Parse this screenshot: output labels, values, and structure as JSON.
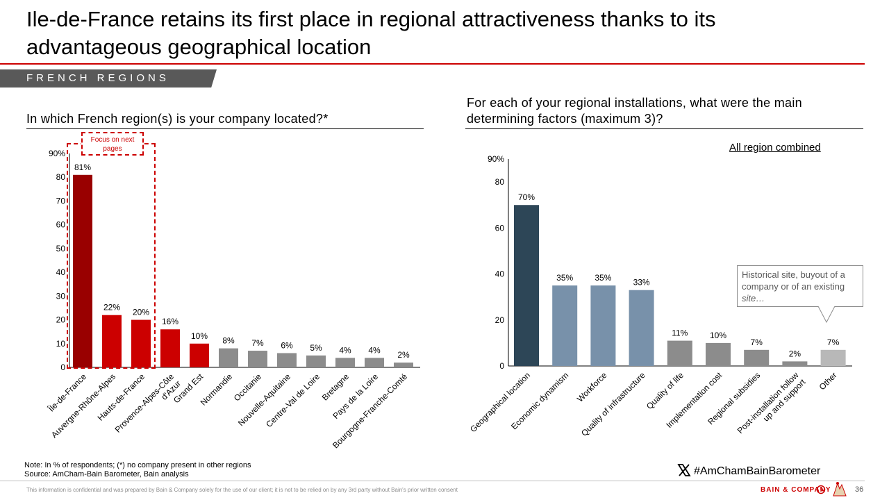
{
  "title": "Ile-de-France retains its first place in regional attractiveness thanks to its advantageous geographical location",
  "section_tag": "FRENCH REGIONS",
  "left_panel": {
    "question": "In which French region(s) is your company located?*",
    "focus_label": "Focus on next pages"
  },
  "right_panel": {
    "question": "For each of your regional installations, what were the main determining factors (maximum 3)?",
    "subtitle": "All region combined",
    "callout": {
      "text": "Historical site, buyout of a company or of an existing ",
      "italic": "site…"
    }
  },
  "note": "Note: In % of respondents; (*) no company present in other regions",
  "source": "Source: AmCham-Bain Barometer, Bain analysis",
  "hashtag": "#AmChamBainBarometer",
  "footer": {
    "disclaimer": "This information is confidential and was prepared by Bain & Company solely for the use of our client; it is not to be relied on by any 3rd party without Bain's prior written consent",
    "brand": "BAIN & COMPANY",
    "page": "36"
  },
  "colors": {
    "accent_red": "#cc0000",
    "dark_red": "#990000",
    "grey": "#8c8c8c",
    "navy": "#2d4657",
    "steel_blue": "#7891aa",
    "light_grey": "#b8b8b8"
  },
  "icons": [
    "x-logo-icon",
    "bain-mark-icon",
    "bain-figure-icon"
  ],
  "chart_data": [
    {
      "type": "bar",
      "categories": [
        "Île-de-France",
        "Auvergne-Rhône-Alpes",
        "Hauts-de-France",
        "Provence-Alpes-Côte d'Azur",
        "Grand Est",
        "Normandie",
        "Occitanie",
        "Nouvelle-Aquitaine",
        "Centre-Val de Loire",
        "Bretagne",
        "Pays de la Loire",
        "Bourgogne-Franche-Comté"
      ],
      "values": [
        81,
        22,
        20,
        16,
        10,
        8,
        7,
        6,
        5,
        4,
        4,
        2
      ],
      "labels": [
        "81%",
        "22%",
        "20%",
        "16%",
        "10%",
        "8%",
        "7%",
        "6%",
        "5%",
        "4%",
        "4%",
        "2%"
      ],
      "bar_colors": [
        "#990000",
        "#cc0000",
        "#cc0000",
        "#cc0000",
        "#cc0000",
        "#8c8c8c",
        "#8c8c8c",
        "#8c8c8c",
        "#8c8c8c",
        "#8c8c8c",
        "#8c8c8c",
        "#8c8c8c"
      ],
      "yticks": [
        "0",
        "10",
        "20",
        "30",
        "40",
        "50",
        "60",
        "70",
        "80",
        "90%"
      ],
      "ylim": [
        0,
        90
      ],
      "xlabel": "",
      "ylabel": "",
      "grid": false
    },
    {
      "type": "bar",
      "categories": [
        "Geographical location",
        "Economic dynamism",
        "Workforce",
        "Quality of infrastructure",
        "Quality of life",
        "Implementation cost",
        "Regional subsidies",
        "Post-installation follow up and support",
        "Other"
      ],
      "values": [
        70,
        35,
        35,
        33,
        11,
        10,
        7,
        2,
        7
      ],
      "labels": [
        "70%",
        "35%",
        "35%",
        "33%",
        "11%",
        "10%",
        "7%",
        "2%",
        "7%"
      ],
      "bar_colors": [
        "#2d4657",
        "#7891aa",
        "#7891aa",
        "#7891aa",
        "#8c8c8c",
        "#8c8c8c",
        "#8c8c8c",
        "#8c8c8c",
        "#b8b8b8"
      ],
      "yticks": [
        "0",
        "20",
        "40",
        "60",
        "80",
        "90%"
      ],
      "ylim": [
        0,
        90
      ],
      "xlabel": "",
      "ylabel": "",
      "grid": false
    }
  ]
}
